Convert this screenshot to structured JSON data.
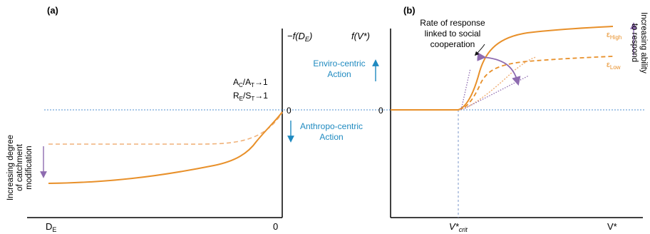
{
  "panel_a": {
    "tag": "(a)",
    "y_axis_label": "−f(D",
    "y_axis_sub": "E",
    "y_axis_close": ")",
    "ratio1_a": "A",
    "ratio1_a_sub": "C",
    "ratio1_b": "/A",
    "ratio1_b_sub": "T",
    "ratio1_end": "→1",
    "ratio2_a": "R",
    "ratio2_a_sub": "E",
    "ratio2_b": "/S",
    "ratio2_b_sub": "T",
    "ratio2_end": "→1",
    "zero_label": "0",
    "x_left_label": "D",
    "x_left_sub": "E",
    "x_right_label": "0",
    "side_label_lines": [
      "Increasing degree",
      "of catchment",
      "modification"
    ]
  },
  "middle": {
    "enviro_lines": [
      "Enviro-centric",
      "Action"
    ],
    "anthropo_lines": [
      "Anthropo-centric",
      "Action"
    ]
  },
  "panel_b": {
    "tag": "(b)",
    "y_axis_label": "f(V*)",
    "zero_label": "0",
    "annotation_lines": [
      "Rate of response",
      "linked to social",
      "cooperation"
    ],
    "eps_high": "ε",
    "eps_high_sub": "High",
    "eps_low": "ε",
    "eps_low_sub": "Low",
    "x_crit": "V*",
    "x_crit_sub": "crit",
    "x_end": "V*",
    "side_label_lines": [
      "Increasing ability",
      "to respond"
    ]
  },
  "colors": {
    "curve": "#e8902a",
    "curve_light": "#f0b27a",
    "baseline": "#4f8fd0",
    "arrow_blue": "#1f8ac0",
    "purple": "#8e6bb0",
    "axis": "#000000",
    "crit_line": "#7a94c8"
  }
}
